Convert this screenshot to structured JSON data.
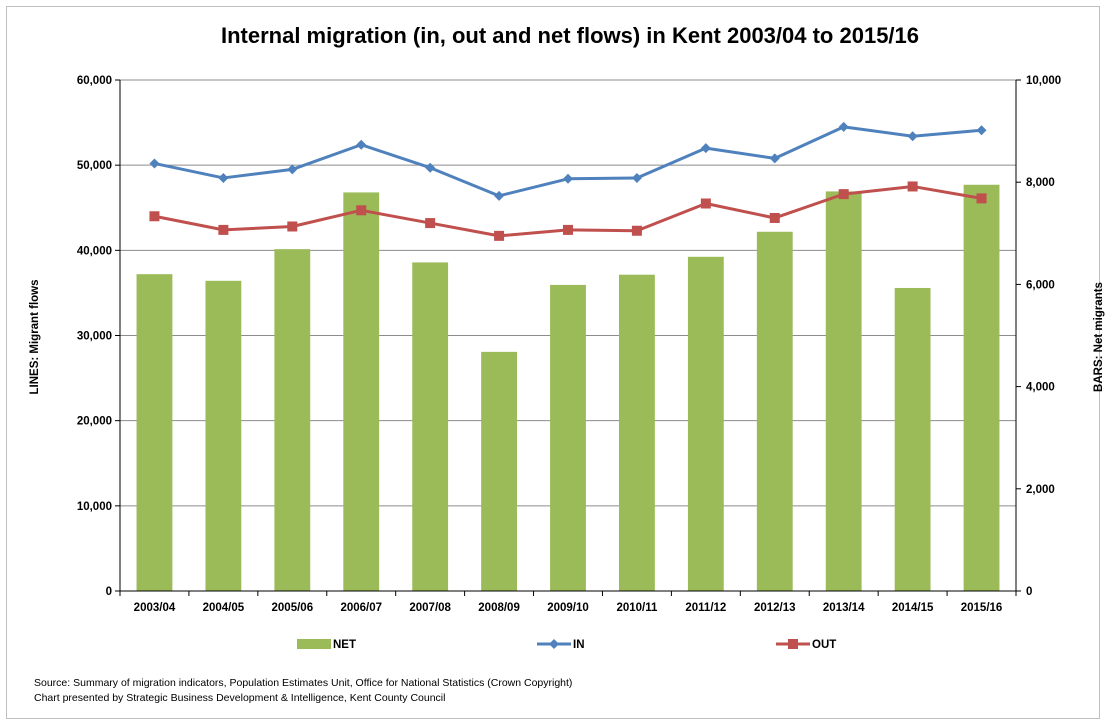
{
  "chart_data": {
    "type": "bar",
    "title": "Internal migration (in, out and net flows) in Kent 2003/04 to 2015/16",
    "categories": [
      "2003/04",
      "2004/05",
      "2005/06",
      "2006/07",
      "2007/08",
      "2008/09",
      "2009/10",
      "2010/11",
      "2011/12",
      "2012/13",
      "2013/14",
      "2014/15",
      "2015/16"
    ],
    "y_left": {
      "label": "LINES: Migrant flows",
      "min": 0,
      "max": 60000,
      "ticks": [
        "0",
        "10,000",
        "20,000",
        "30,000",
        "40,000",
        "50,000",
        "60,000"
      ]
    },
    "y_right": {
      "label": "BARS: Net migrants",
      "min": 0,
      "max": 10000,
      "ticks": [
        "0",
        "2,000",
        "4,000",
        "6,000",
        "8,000",
        "10,000"
      ]
    },
    "grid": true,
    "legend_position": "bottom",
    "series": [
      {
        "name": "NET",
        "kind": "bar",
        "axis": "right",
        "color": "#9bbb59",
        "values": [
          6200,
          6070,
          6690,
          7800,
          6430,
          4680,
          5990,
          6190,
          6540,
          7030,
          7820,
          5930,
          7950
        ]
      },
      {
        "name": "IN",
        "kind": "line",
        "axis": "left",
        "color": "#4f81bd",
        "marker": "diamond",
        "values": [
          50200,
          48500,
          49500,
          52400,
          49700,
          46400,
          48400,
          48500,
          52000,
          50800,
          54500,
          53400,
          54100
        ]
      },
      {
        "name": "OUT",
        "kind": "line",
        "axis": "left",
        "color": "#c0504d",
        "marker": "square",
        "values": [
          44000,
          42400,
          42800,
          44700,
          43200,
          41700,
          42400,
          42300,
          45500,
          43800,
          46600,
          47500,
          46100
        ]
      }
    ]
  },
  "footer": {
    "source": "Source:  Summary of migration indicators, Population Estimates Unit, Office for National Statistics (Crown Copyright)",
    "presented_by": "Chart presented by Strategic Business Development & Intelligence, Kent County Council"
  }
}
